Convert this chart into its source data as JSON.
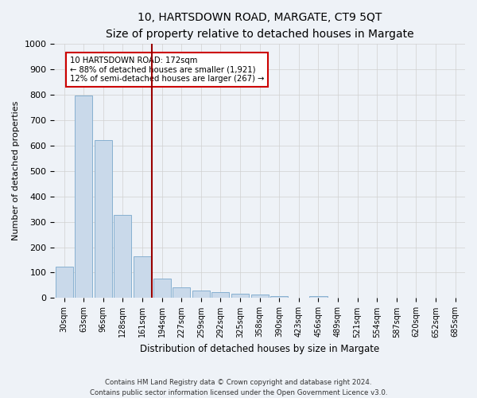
{
  "title": "10, HARTSDOWN ROAD, MARGATE, CT9 5QT",
  "subtitle": "Size of property relative to detached houses in Margate",
  "xlabel": "Distribution of detached houses by size in Margate",
  "ylabel": "Number of detached properties",
  "categories": [
    "30sqm",
    "63sqm",
    "96sqm",
    "128sqm",
    "161sqm",
    "194sqm",
    "227sqm",
    "259sqm",
    "292sqm",
    "325sqm",
    "358sqm",
    "390sqm",
    "423sqm",
    "456sqm",
    "489sqm",
    "521sqm",
    "554sqm",
    "587sqm",
    "620sqm",
    "652sqm",
    "685sqm"
  ],
  "values": [
    125,
    795,
    620,
    328,
    163,
    78,
    42,
    28,
    22,
    16,
    15,
    9,
    0,
    9,
    0,
    0,
    0,
    0,
    0,
    0,
    0
  ],
  "bar_color": "#c9d9ea",
  "bar_edge_color": "#7aa8cc",
  "grid_color": "#d0d0d0",
  "vline_color": "#990000",
  "annotation_text": "10 HARTSDOWN ROAD: 172sqm\n← 88% of detached houses are smaller (1,921)\n12% of semi-detached houses are larger (267) →",
  "annotation_box_color": "#ffffff",
  "annotation_box_edge": "#cc0000",
  "ylim": [
    0,
    1000
  ],
  "yticks": [
    0,
    100,
    200,
    300,
    400,
    500,
    600,
    700,
    800,
    900,
    1000
  ],
  "footer1": "Contains HM Land Registry data © Crown copyright and database right 2024.",
  "footer2": "Contains public sector information licensed under the Open Government Licence v3.0.",
  "bg_color": "#eef2f7",
  "plot_bg_color": "#eef2f7"
}
